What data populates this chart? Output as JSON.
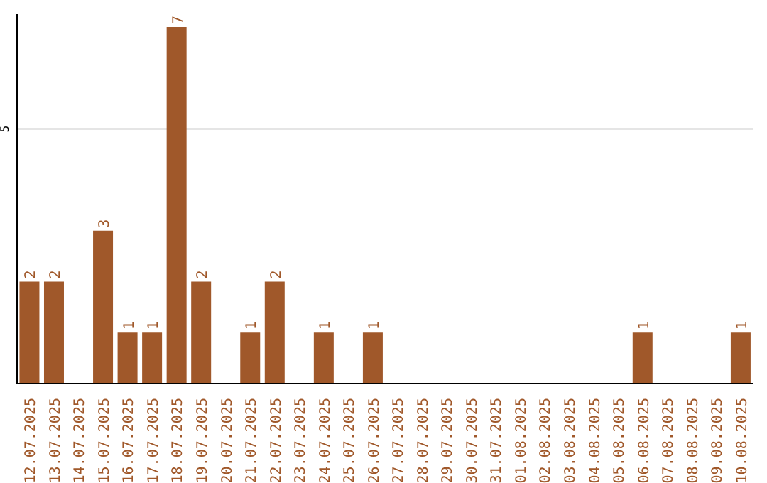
{
  "chart_data": {
    "type": "bar",
    "categories": [
      "12.07.2025",
      "13.07.2025",
      "14.07.2025",
      "15.07.2025",
      "16.07.2025",
      "17.07.2025",
      "18.07.2025",
      "19.07.2025",
      "20.07.2025",
      "21.07.2025",
      "22.07.2025",
      "23.07.2025",
      "24.07.2025",
      "25.07.2025",
      "26.07.2025",
      "27.07.2025",
      "28.07.2025",
      "29.07.2025",
      "30.07.2025",
      "31.07.2025",
      "01.08.2025",
      "02.08.2025",
      "03.08.2025",
      "04.08.2025",
      "05.08.2025",
      "06.08.2025",
      "07.08.2025",
      "08.08.2025",
      "09.08.2025",
      "10.08.2025"
    ],
    "values": [
      2,
      2,
      0,
      3,
      1,
      1,
      7,
      2,
      0,
      1,
      2,
      0,
      1,
      0,
      1,
      0,
      0,
      0,
      0,
      0,
      0,
      0,
      0,
      0,
      0,
      1,
      0,
      0,
      0,
      1
    ],
    "value_labels": [
      "2",
      "2",
      null,
      "3",
      "1",
      "1",
      "7",
      "2",
      null,
      "1",
      "2",
      null,
      "1",
      null,
      "1",
      null,
      null,
      null,
      null,
      null,
      null,
      null,
      null,
      null,
      null,
      "1",
      null,
      null,
      null,
      "1"
    ],
    "color": "#a0582a",
    "ylim": [
      0,
      7.25
    ],
    "yticks": [
      5
    ],
    "grid": "y"
  }
}
